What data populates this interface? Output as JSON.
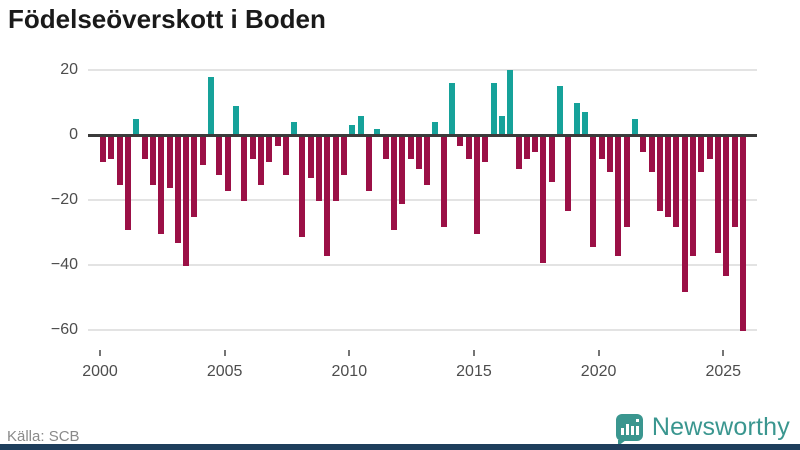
{
  "title": "Födelseöverskott i Boden",
  "source": "Källa: SCB",
  "brand": {
    "name": "Newsworthy",
    "icon": "bar-chart-speech-bubble-icon"
  },
  "colors": {
    "negative_bar": "#9b1046",
    "positive_bar": "#16a29a",
    "zero_axis": "#3b3b3b",
    "gridline": "#e3e3e3",
    "brand_teal": "#3a968f",
    "bottom_strip": "#1e3e5c"
  },
  "chart_data": {
    "type": "bar",
    "title": "Födelseöverskott i Boden",
    "xlabel": "",
    "ylabel": "",
    "period_type": "tertial (3 per year)",
    "x_range_years": [
      2000,
      2025
    ],
    "x_tick_labels": [
      "2000",
      "2005",
      "2010",
      "2015",
      "2020",
      "2025"
    ],
    "y_ticks": [
      20,
      0,
      -20,
      -40,
      -60
    ],
    "ylim": [
      -65,
      25
    ],
    "grid": "horizontal",
    "legend": "none",
    "positive_color": "#16a29a",
    "negative_color": "#9b1046",
    "years": [
      {
        "year": 2000,
        "values": [
          -8,
          -7,
          -15
        ]
      },
      {
        "year": 2001,
        "values": [
          -29,
          5,
          -7
        ]
      },
      {
        "year": 2002,
        "values": [
          -15,
          -30,
          -16
        ]
      },
      {
        "year": 2003,
        "values": [
          -33,
          -40,
          -25
        ]
      },
      {
        "year": 2004,
        "values": [
          -9,
          18,
          -12
        ]
      },
      {
        "year": 2005,
        "values": [
          -17,
          9,
          -20
        ]
      },
      {
        "year": 2006,
        "values": [
          -7,
          -15,
          -8
        ]
      },
      {
        "year": 2007,
        "values": [
          -3,
          -12,
          4
        ]
      },
      {
        "year": 2008,
        "values": [
          -31,
          -13,
          -20
        ]
      },
      {
        "year": 2009,
        "values": [
          -37,
          -20,
          -12
        ]
      },
      {
        "year": 2010,
        "values": [
          3,
          6,
          -17
        ]
      },
      {
        "year": 2011,
        "values": [
          2,
          -7,
          -29
        ]
      },
      {
        "year": 2012,
        "values": [
          -21,
          -7,
          -10
        ]
      },
      {
        "year": 2013,
        "values": [
          -15,
          4,
          -28
        ]
      },
      {
        "year": 2014,
        "values": [
          16,
          -3,
          -7
        ]
      },
      {
        "year": 2015,
        "values": [
          -30,
          -8,
          16
        ]
      },
      {
        "year": 2016,
        "values": [
          6,
          20,
          -10
        ]
      },
      {
        "year": 2017,
        "values": [
          -7,
          -5,
          -39
        ]
      },
      {
        "year": 2018,
        "values": [
          -14,
          15,
          -23
        ]
      },
      {
        "year": 2019,
        "values": [
          10,
          7,
          -34
        ]
      },
      {
        "year": 2020,
        "values": [
          -7,
          -11,
          -37
        ]
      },
      {
        "year": 2021,
        "values": [
          -28,
          5,
          -5
        ]
      },
      {
        "year": 2022,
        "values": [
          -11,
          -23,
          -25
        ]
      },
      {
        "year": 2023,
        "values": [
          -28,
          -48,
          -37
        ]
      },
      {
        "year": 2024,
        "values": [
          -11,
          -7,
          -36
        ]
      },
      {
        "year": 2025,
        "values": [
          -43,
          -28,
          -60
        ]
      }
    ]
  }
}
